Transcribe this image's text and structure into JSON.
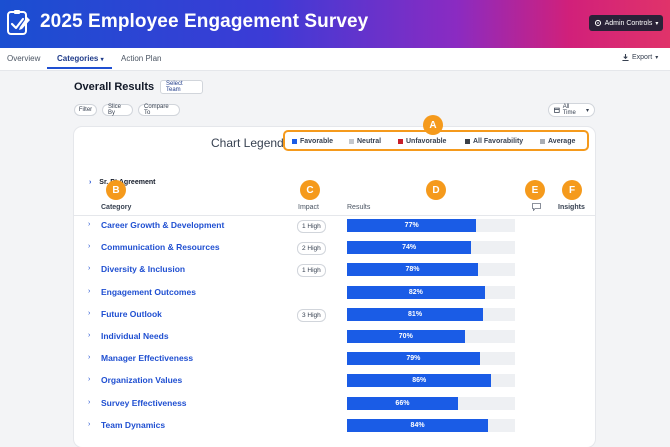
{
  "header": {
    "title": "2025 Employee Engagement Survey",
    "admin_label": "Admin Controls",
    "logo_icon": "survey-checklist-icon",
    "gradient": [
      "#1a4fd1",
      "#8a2bc2",
      "#e0336a"
    ]
  },
  "nav": {
    "tabs": [
      {
        "label": "Overview"
      },
      {
        "label": "Categories"
      },
      {
        "label": "Action Plan"
      }
    ],
    "active_tab": "Categories",
    "export_label": "Export"
  },
  "toolbar": {
    "title": "Overall Results",
    "select_team": "Select Team",
    "filter": "Filter",
    "slice_by": "Slice By",
    "compare_to": "Compare To",
    "time_range": "All Time"
  },
  "legend": {
    "title": "Chart Legend",
    "items": [
      {
        "label": "Favorable",
        "color": "#1a5ce6"
      },
      {
        "label": "Neutral",
        "color": "#c4c7cc"
      },
      {
        "label": "Unfavorable",
        "color": "#c81e2a"
      },
      {
        "label": "All Favorability",
        "color": "#3a3f47"
      },
      {
        "label": "Average",
        "color": "#a9adb3"
      }
    ]
  },
  "callouts": {
    "a": "A",
    "b": "B",
    "c": "C",
    "d": "D",
    "e": "E",
    "f": "F",
    "color": "#f59a1c"
  },
  "section_label": "Sr. Pt Agreement",
  "columns": {
    "category": "Category",
    "impact": "Impact",
    "results": "Results",
    "insights": "Insights"
  },
  "rows": [
    {
      "name": "Career Growth & Development",
      "impact": "1 High",
      "favorable": 77,
      "label": "77%"
    },
    {
      "name": "Communication & Resources",
      "impact": "2 High",
      "favorable": 74,
      "label": "74%"
    },
    {
      "name": "Diversity & Inclusion",
      "impact": "1 High",
      "favorable": 78,
      "label": "78%"
    },
    {
      "name": "Engagement Outcomes",
      "impact": "",
      "favorable": 82,
      "label": "82%"
    },
    {
      "name": "Future Outlook",
      "impact": "3 High",
      "favorable": 81,
      "label": "81%"
    },
    {
      "name": "Individual Needs",
      "impact": "",
      "favorable": 70,
      "label": "70%"
    },
    {
      "name": "Manager Effectiveness",
      "impact": "",
      "favorable": 79,
      "label": "79%"
    },
    {
      "name": "Organization Values",
      "impact": "",
      "favorable": 86,
      "label": "86%"
    },
    {
      "name": "Survey Effectiveness",
      "impact": "",
      "favorable": 66,
      "label": "66%"
    },
    {
      "name": "Team Dynamics",
      "impact": "",
      "favorable": 84,
      "label": "84%"
    }
  ]
}
